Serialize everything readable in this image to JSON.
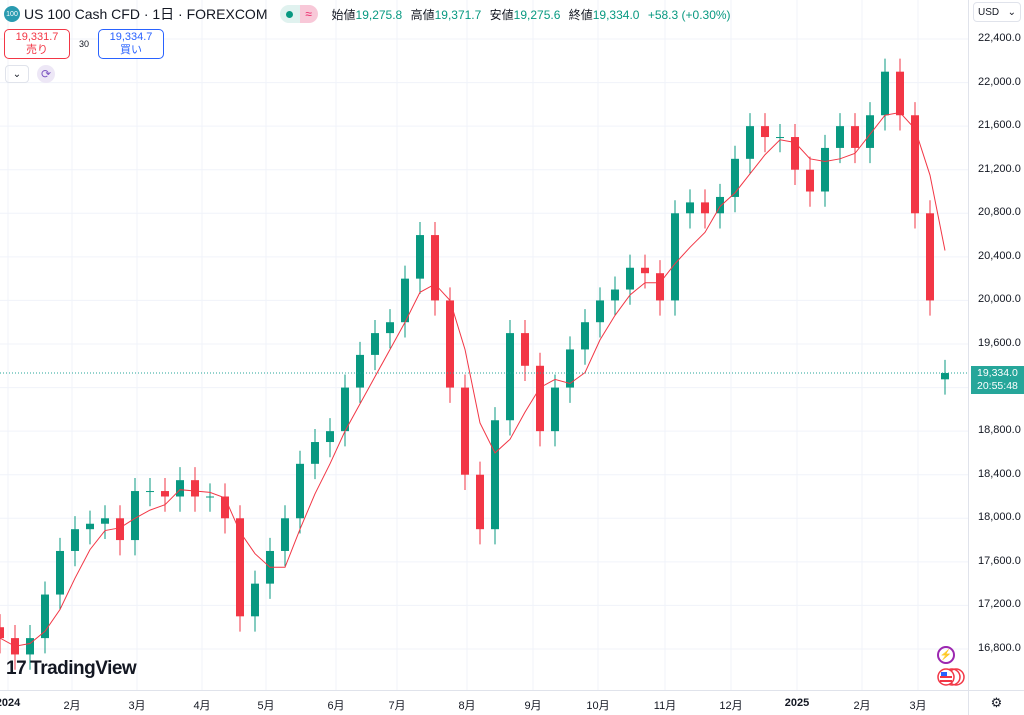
{
  "header": {
    "symbol_badge": "100",
    "title": "US 100 Cash CFD · 1日 · FOREXCOM",
    "ohlc": [
      {
        "label": "始値",
        "value": "19,275.8"
      },
      {
        "label": "高値",
        "value": "19,371.7"
      },
      {
        "label": "安値",
        "value": "19,275.6"
      },
      {
        "label": "終値",
        "value": "19,334.0"
      }
    ],
    "change": "+58.3 (+0.30%)"
  },
  "trade": {
    "sell_price": "19,331.7",
    "sell_label": "売り",
    "spread": "30",
    "buy_price": "19,334.7",
    "buy_label": "買い"
  },
  "price_axis": {
    "currency": "USD",
    "labels": [
      "22,400.0",
      "22,000.0",
      "21,600.0",
      "21,200.0",
      "20,800.0",
      "20,400.0",
      "20,000.0",
      "19,600.0",
      "18,800.0",
      "18,400.0",
      "18,000.0",
      "17,600.0",
      "17,200.0",
      "16,800.0"
    ],
    "current_price": "19,334.0",
    "countdown": "20:55:48"
  },
  "time_axis": {
    "labels": [
      "2024",
      "2月",
      "3月",
      "4月",
      "5月",
      "6月",
      "7月",
      "8月",
      "9月",
      "10月",
      "11月",
      "12月",
      "2025",
      "2月",
      "3月"
    ]
  },
  "branding": "TradingView",
  "colors": {
    "up": "#089981",
    "down": "#f23645",
    "ma": "#f23645",
    "current": "#26a69a"
  },
  "icons": {
    "collapse": "chevron-down-icon",
    "refresh": "refresh-icon",
    "flash": "lightning-icon",
    "flag": "us-flag-icon",
    "settings": "gear-icon"
  },
  "chart_data": {
    "type": "candlestick",
    "ylim": [
      16600,
      22500
    ],
    "yticks": [
      16800,
      17200,
      17600,
      18000,
      18400,
      18800,
      19600,
      20000,
      20400,
      20800,
      21200,
      21600,
      22000,
      22400
    ],
    "xticks": [
      "2024",
      "2月",
      "3月",
      "4月",
      "5月",
      "6月",
      "7月",
      "8月",
      "9月",
      "10月",
      "11月",
      "12月",
      "2025",
      "2月",
      "3月"
    ],
    "grid": true,
    "closes": [
      16900,
      16750,
      16900,
      17300,
      17700,
      17900,
      17950,
      18000,
      17800,
      18250,
      18250,
      18200,
      18350,
      18200,
      18200,
      18000,
      17100,
      17400,
      17700,
      18000,
      18500,
      18700,
      18800,
      19200,
      19500,
      19700,
      19800,
      20200,
      20600,
      20000,
      19200,
      18400,
      17900,
      18900,
      19700,
      19400,
      18800,
      19200,
      19550,
      19800,
      20000,
      20100,
      20300,
      20250,
      20000,
      20800,
      20900,
      20800,
      20950,
      21300,
      21600,
      21500,
      21500,
      21200,
      21000,
      21400,
      21600,
      21400,
      21700,
      22100,
      21700,
      20800,
      20000,
      19334
    ],
    "last": {
      "open": 19275.8,
      "high": 19371.7,
      "low": 19275.6,
      "close": 19334.0
    },
    "moving_average": true
  }
}
